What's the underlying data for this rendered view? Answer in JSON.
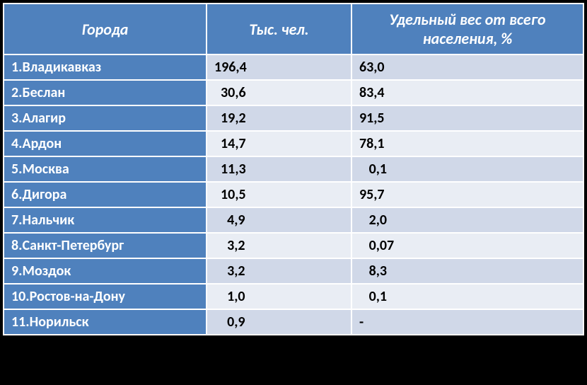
{
  "table": {
    "columns": [
      "Города",
      "Тыс. чел.",
      "Удельный вес от всего населения, %"
    ],
    "rows": [
      {
        "city": "1.Владикавказ",
        "pop": "196,4",
        "pct": "63,0"
      },
      {
        "city": "2.Беслан",
        "pop": "  30,6",
        "pct": "83,4"
      },
      {
        "city": "3.Алагир",
        "pop": "  19,2",
        "pct": "91,5"
      },
      {
        "city": "4.Ардон",
        "pop": "  14,7",
        "pct": "78,1"
      },
      {
        "city": "5.Москва",
        "pop": "  11,3",
        "pct": "   0,1"
      },
      {
        "city": "6.Дигора",
        "pop": "  10,5",
        "pct": "95,7"
      },
      {
        "city": "7.Нальчик",
        "pop": "    4,9",
        "pct": "   2,0"
      },
      {
        "city": "8.Санкт-Петербург",
        "pop": "    3,2",
        "pct": "   0,07"
      },
      {
        "city": "9.Моздок",
        "pop": "    3,2",
        "pct": "   8,3"
      },
      {
        "city": "10.Ростов-на-Дону",
        "pop": "    1,0",
        "pct": "   0,1"
      },
      {
        "city": "11.Норильск",
        "pop": "    0,9",
        "pct": "-"
      }
    ],
    "header_bg": "#4f81bd",
    "header_color": "#ffffff",
    "city_col_bg": "#4f81bd",
    "city_col_color": "#ffffff",
    "row_odd_bg": "#d0d8e8",
    "row_even_bg": "#e9edf4",
    "border_color": "#ffffff",
    "font_family": "Calibri",
    "header_fontsize": 22,
    "cell_fontsize": 20
  }
}
